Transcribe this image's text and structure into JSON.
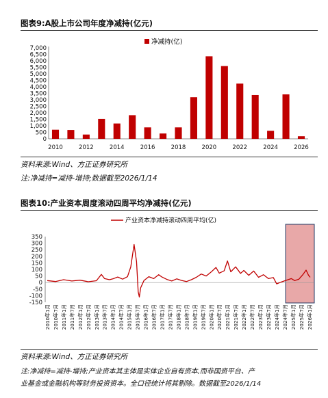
{
  "fig9": {
    "title": "图表9:A股上市公司年度净减持(亿元)",
    "source": "资料来源:Wind、方正证券研究所",
    "note": "注:净减持=减持-增持;数据截至2026/1/14",
    "legend_color": "#C00000"
  },
  "fig10": {
    "title": "图表10:产业资本周度滚动四周平均净减持(亿元)",
    "source": "资料来源:Wind、方正证券研究所",
    "note_line1": "注:净减持=减持-增持;产业资本其主体是实体企业自有资本,而非国资平台、产",
    "note_line2": "业基金或金融机构等财务投资资本。全口径统计将其剔除。数据截至2026/1/14",
    "highlight_color": "#E8A8A8",
    "highlight_border": "#1F3864"
  },
  "chart_data": [
    {
      "type": "bar",
      "legend": "净减持(亿)",
      "color": "#C00000",
      "x": [
        2010,
        2011,
        2012,
        2013,
        2014,
        2015,
        2016,
        2017,
        2018,
        2019,
        2020,
        2021,
        2022,
        2023,
        2024,
        2025,
        2026
      ],
      "values": [
        700,
        680,
        330,
        1530,
        1180,
        1820,
        880,
        410,
        880,
        3200,
        6350,
        5600,
        4250,
        3370,
        620,
        3420,
        200
      ],
      "xticks": [
        "2010",
        "2012",
        "2014",
        "2016",
        "2018",
        "2020",
        "2022",
        "2024",
        "2026"
      ],
      "yticks": [
        "0",
        "500",
        "1,000",
        "1,500",
        "2,000",
        "2,500",
        "3,000",
        "3,500",
        "4,000",
        "4,500",
        "5,000",
        "5,500",
        "6,000",
        "6,500",
        "7,000"
      ],
      "ylim": [
        0,
        7000
      ]
    },
    {
      "type": "line",
      "legend": "产业资本净减持滚动四周平均(亿)",
      "color": "#C00000",
      "ylim": [
        -150,
        350
      ],
      "yticks": [
        "350",
        "300",
        "250",
        "200",
        "150",
        "100",
        "50",
        "0",
        "-50",
        "-100",
        "-150"
      ],
      "xticks": [
        "2010年1月",
        "2010年7月",
        "2011年1月",
        "2011年7月",
        "2012年1月",
        "2012年7月",
        "2013年1月",
        "2013年7月",
        "2014年1月",
        "2014年7月",
        "2015年1月",
        "2015年7月",
        "2016年1月",
        "2016年7月",
        "2017年1月",
        "2017年7月",
        "2018年1月",
        "2018年7月",
        "2019年1月",
        "2019年7月",
        "2020年1月",
        "2020年7月",
        "2021年1月",
        "2021年7月",
        "2022年1月",
        "2022年7月",
        "2023年1月",
        "2023年7月",
        "2024年1月",
        "2024年7月",
        "2025年1月",
        "2025年7月",
        "2026年1月"
      ],
      "points": [
        [
          2010.0,
          15
        ],
        [
          2010.5,
          8
        ],
        [
          2011.0,
          22
        ],
        [
          2011.5,
          12
        ],
        [
          2012.0,
          18
        ],
        [
          2012.5,
          6
        ],
        [
          2013.0,
          14
        ],
        [
          2013.3,
          62
        ],
        [
          2013.5,
          30
        ],
        [
          2013.8,
          22
        ],
        [
          2014.0,
          28
        ],
        [
          2014.3,
          42
        ],
        [
          2014.6,
          26
        ],
        [
          2014.9,
          45
        ],
        [
          2015.1,
          120
        ],
        [
          2015.3,
          290
        ],
        [
          2015.45,
          160
        ],
        [
          2015.55,
          -70
        ],
        [
          2015.62,
          -110
        ],
        [
          2015.7,
          -40
        ],
        [
          2015.9,
          15
        ],
        [
          2016.2,
          45
        ],
        [
          2016.5,
          30
        ],
        [
          2016.8,
          60
        ],
        [
          2017.0,
          42
        ],
        [
          2017.3,
          24
        ],
        [
          2017.6,
          12
        ],
        [
          2017.9,
          28
        ],
        [
          2018.2,
          16
        ],
        [
          2018.5,
          8
        ],
        [
          2018.8,
          22
        ],
        [
          2019.1,
          40
        ],
        [
          2019.4,
          65
        ],
        [
          2019.7,
          50
        ],
        [
          2020.0,
          80
        ],
        [
          2020.3,
          115
        ],
        [
          2020.5,
          72
        ],
        [
          2020.8,
          90
        ],
        [
          2021.0,
          165
        ],
        [
          2021.2,
          82
        ],
        [
          2021.5,
          120
        ],
        [
          2021.8,
          70
        ],
        [
          2022.0,
          92
        ],
        [
          2022.3,
          55
        ],
        [
          2022.6,
          88
        ],
        [
          2022.9,
          40
        ],
        [
          2023.2,
          60
        ],
        [
          2023.5,
          30
        ],
        [
          2023.8,
          38
        ],
        [
          2024.0,
          -10
        ],
        [
          2024.3,
          5
        ],
        [
          2024.6,
          18
        ],
        [
          2024.9,
          30
        ],
        [
          2025.1,
          15
        ],
        [
          2025.35,
          25
        ],
        [
          2025.6,
          60
        ],
        [
          2025.8,
          95
        ],
        [
          2025.95,
          55
        ],
        [
          2026.05,
          40
        ]
      ]
    }
  ]
}
